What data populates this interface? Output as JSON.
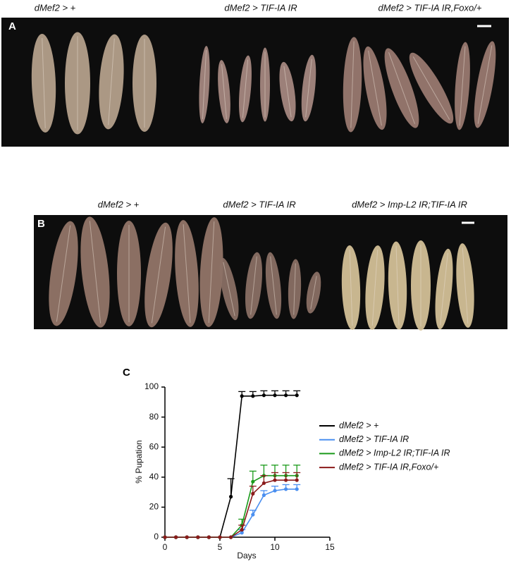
{
  "panel_a": {
    "label": "A",
    "captions": [
      "dMef2 > +",
      "dMef2 > TIF-IA IR",
      "dMef2 > TIF-IA IR,Foxo/+"
    ]
  },
  "panel_b": {
    "label": "B",
    "captions": [
      "dMef2 > +",
      "dMef2 > TIF-IA IR",
      "dMef2 > Imp-L2 IR;TIF-IA IR"
    ]
  },
  "chart_data": {
    "type": "line",
    "panel_label": "C",
    "x_label": "Days",
    "y_label": "% Pupation",
    "x": [
      0,
      1,
      2,
      3,
      4,
      5,
      6,
      7,
      8,
      9,
      10,
      11,
      12
    ],
    "series": [
      {
        "name": "dMef2 > +",
        "color": "#000000",
        "values": [
          0,
          0,
          0,
          0,
          0,
          0,
          27,
          94,
          94,
          94.5,
          94.5,
          94.5,
          94.5
        ],
        "errors": [
          0,
          0,
          0,
          0,
          0,
          0,
          12,
          3,
          3,
          3,
          3,
          3,
          3
        ]
      },
      {
        "name": "dMef2 > TIF-IA IR",
        "color": "#4a8ff0",
        "values": [
          0,
          0,
          0,
          0,
          0,
          0,
          0,
          3,
          15,
          28,
          31,
          32,
          32
        ],
        "errors": [
          0,
          0,
          0,
          0,
          0,
          0,
          0,
          2,
          3,
          3,
          3,
          3,
          3
        ]
      },
      {
        "name": "dMef2 > Imp-L2 IR;TIF-IA IR",
        "color": "#1a9a1a",
        "values": [
          0,
          0,
          0,
          0,
          0,
          0,
          0,
          8,
          37,
          41,
          41,
          41,
          41
        ],
        "errors": [
          0,
          0,
          0,
          0,
          0,
          0,
          0,
          4,
          7,
          7,
          7,
          7,
          7
        ]
      },
      {
        "name": "dMef2 > TIF-IA IR,Foxo/+",
        "color": "#8b1a1a",
        "values": [
          0,
          0,
          0,
          0,
          0,
          0,
          0,
          5,
          29,
          36,
          38,
          38,
          38
        ],
        "errors": [
          0,
          0,
          0,
          0,
          0,
          0,
          0,
          3,
          5,
          5,
          5,
          5,
          5
        ]
      }
    ],
    "xlim": [
      0,
      15
    ],
    "xticks": [
      0,
      5,
      10,
      15
    ],
    "ylim": [
      0,
      100
    ],
    "yticks": [
      0,
      20,
      40,
      60,
      80,
      100
    ]
  }
}
